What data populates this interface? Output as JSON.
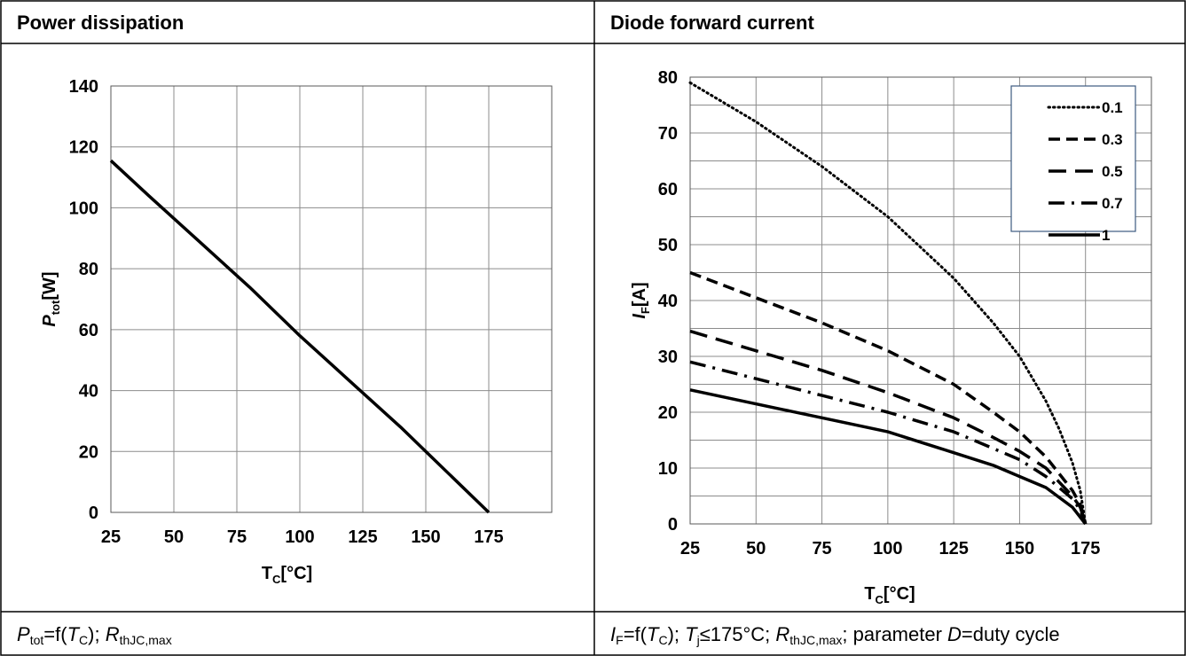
{
  "panels": {
    "left": {
      "header": "Power dissipation",
      "caption": {
        "v1": "P",
        "v1_sub": "tot",
        "eq": "=f(",
        "v2": "T",
        "v2_sub": "C",
        "sep": "); ",
        "v3": "R",
        "v3_sub": "thJC,max"
      }
    },
    "right": {
      "header": "Diode forward current",
      "caption": {
        "v1": "I",
        "v1_sub": "F",
        "eq": "=f(",
        "v2": "T",
        "v2_sub": "C",
        "sep1": "); ",
        "v3": "T",
        "v3_sub": "j",
        "cond": "≤175°C; ",
        "v4": "R",
        "v4_sub": "thJC,max",
        "tail1": "; parameter ",
        "v5": "D",
        "tail2": "=duty cycle"
      }
    }
  },
  "chart_data": [
    {
      "type": "line",
      "ylabel_main": "P",
      "ylabel_sub": "tot",
      "ylabel_unit": "[W]",
      "xlabel_main": "T",
      "xlabel_sub": "C",
      "xlabel_unit": "[°C]",
      "xlim": [
        25,
        200
      ],
      "ylim": [
        0,
        140
      ],
      "xticks": [
        25,
        50,
        75,
        100,
        125,
        150,
        175
      ],
      "yticks": [
        0,
        20,
        40,
        60,
        80,
        100,
        120,
        140
      ],
      "x_grid_step": 25,
      "y_grid_step": 20,
      "grid": true,
      "series": [
        {
          "style": "solid",
          "color": "#000000",
          "x": [
            25,
            40,
            60,
            80,
            100,
            120,
            140,
            160,
            175
          ],
          "y": [
            115.5,
            104,
            89,
            74,
            58,
            43,
            28,
            12,
            0
          ]
        }
      ]
    },
    {
      "type": "line",
      "ylabel_main": "I",
      "ylabel_sub": "F",
      "ylabel_unit": "[A]",
      "xlabel_main": "T",
      "xlabel_sub": "C",
      "xlabel_unit": "[°C]",
      "xlim": [
        25,
        200
      ],
      "ylim": [
        0,
        80
      ],
      "xticks": [
        25,
        50,
        75,
        100,
        125,
        150,
        175
      ],
      "yticks": [
        0,
        10,
        20,
        30,
        40,
        50,
        60,
        70,
        80
      ],
      "x_grid_step": 25,
      "y_grid_step": 5,
      "grid": true,
      "legend_position": "top-right",
      "series": [
        {
          "name": "0.1",
          "style": "dotted",
          "color": "#000000",
          "x": [
            25,
            50,
            75,
            100,
            125,
            140,
            150,
            160,
            165,
            170,
            173,
            175
          ],
          "y": [
            79,
            72,
            64,
            55,
            44,
            36,
            30,
            22,
            17,
            11,
            6,
            0
          ]
        },
        {
          "name": "0.3",
          "style": "dash",
          "color": "#000000",
          "x": [
            25,
            50,
            75,
            100,
            125,
            140,
            150,
            160,
            165,
            170,
            173,
            175
          ],
          "y": [
            45,
            40.5,
            36,
            31,
            25,
            20,
            16.5,
            12,
            9,
            6,
            3.5,
            0
          ]
        },
        {
          "name": "0.5",
          "style": "longdash",
          "color": "#000000",
          "x": [
            25,
            50,
            75,
            100,
            125,
            140,
            150,
            160,
            165,
            170,
            173,
            175
          ],
          "y": [
            34.5,
            31,
            27.5,
            23.5,
            19,
            15.5,
            13,
            10,
            7.5,
            5,
            3,
            0
          ]
        },
        {
          "name": "0.7",
          "style": "dashdot",
          "color": "#000000",
          "x": [
            25,
            50,
            75,
            100,
            125,
            140,
            150,
            160,
            165,
            170,
            173,
            175
          ],
          "y": [
            29,
            26,
            23,
            20,
            16.5,
            13.5,
            11.5,
            8.5,
            6.5,
            4.5,
            2.5,
            0
          ]
        },
        {
          "name": "1",
          "style": "solid",
          "color": "#000000",
          "x": [
            25,
            40,
            60,
            80,
            100,
            120,
            140,
            150,
            160,
            170,
            175
          ],
          "y": [
            24,
            22.5,
            20.5,
            18.5,
            16.5,
            13.5,
            10.5,
            8.5,
            6.5,
            3,
            0
          ]
        }
      ]
    }
  ]
}
